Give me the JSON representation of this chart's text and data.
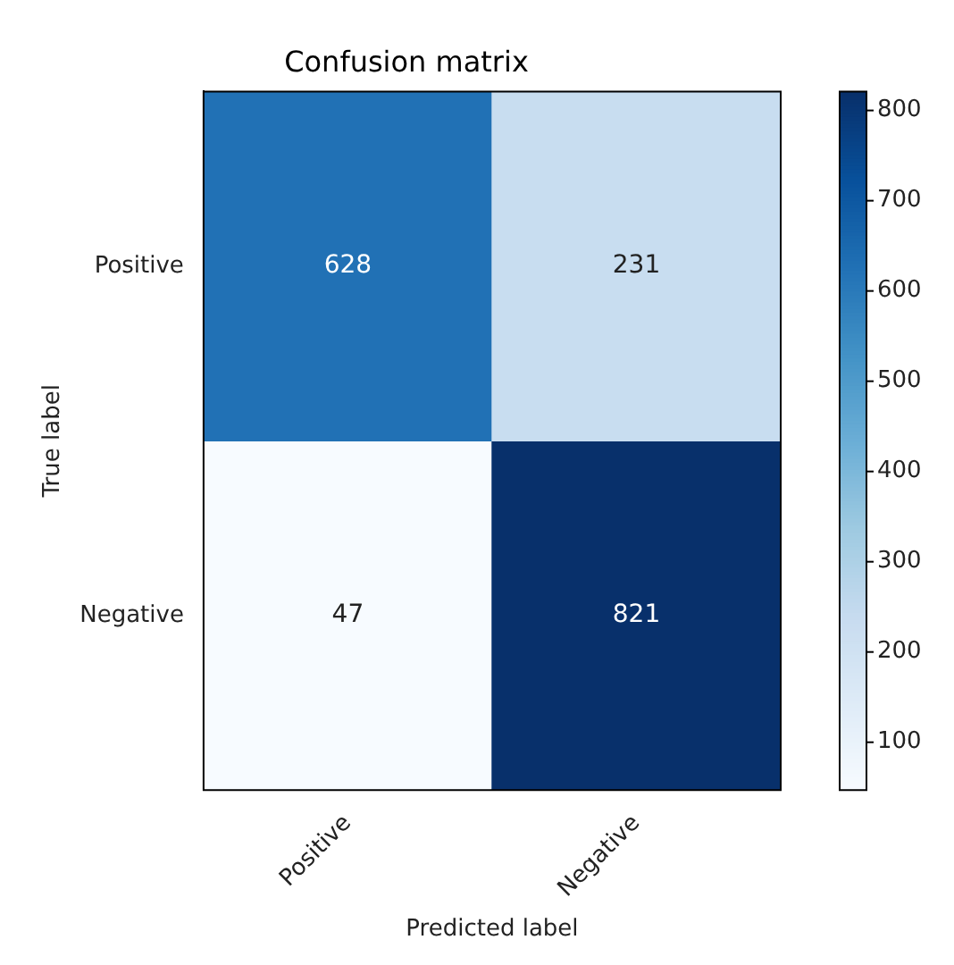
{
  "chart_data": {
    "type": "heatmap",
    "title": "Confusion matrix",
    "xlabel": "Predicted label",
    "ylabel": "True label",
    "categories": [
      "Positive",
      "Negative"
    ],
    "y_categories": [
      "Positive",
      "Negative"
    ],
    "cells": [
      [
        628,
        231
      ],
      [
        47,
        821
      ]
    ],
    "data_labels": true,
    "clim": [
      47,
      821
    ],
    "cticks": [
      100,
      200,
      300,
      400,
      500,
      600,
      700,
      800
    ]
  }
}
